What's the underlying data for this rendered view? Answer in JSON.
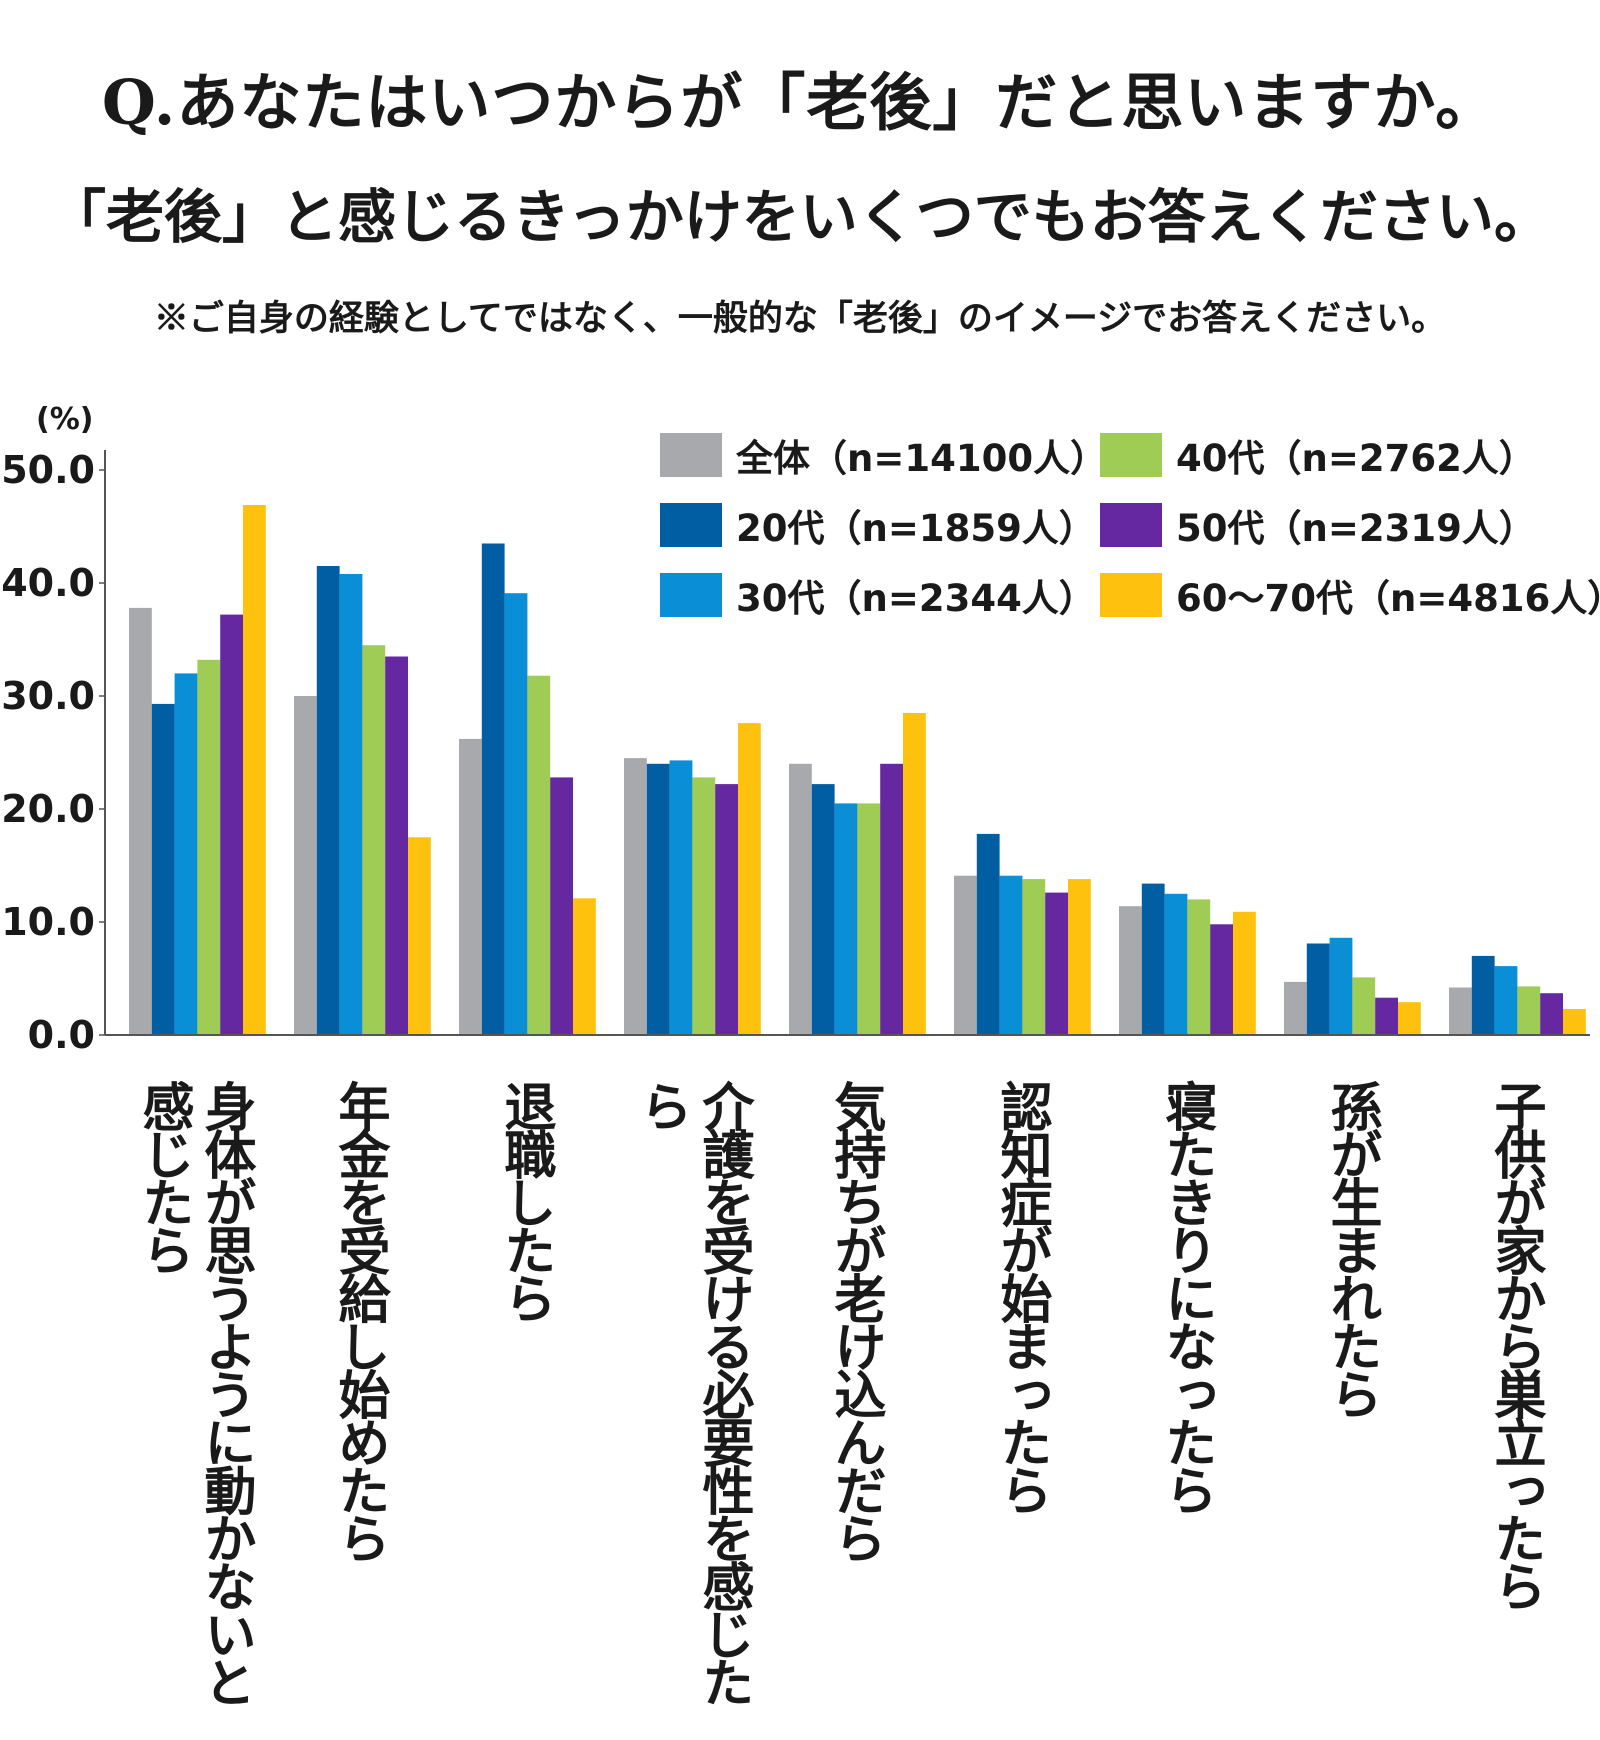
{
  "title_line1": "Q.あなたはいつからが「老後」だと思いますか。",
  "title_line2": "「老後」と感じるきっかけをいくつでもお答えください。",
  "note": "※ご自身の経験としてではなく、一般的な「老後」のイメージでお答えください。",
  "chart_data": {
    "type": "bar",
    "ylabel": "(%)",
    "ylim": [
      0,
      50
    ],
    "yticks": [
      "0.0",
      "10.0",
      "20.0",
      "30.0",
      "40.0",
      "50.0"
    ],
    "legend_position": "top-right",
    "categories": [
      "身体が思うように動かないと感じたら",
      "年金を受給し始めたら",
      "退職したら",
      "介護を受ける必要性を感じたら",
      "気持ちが老け込んだら",
      "認知症が始まったら",
      "寝たきりになったら",
      "孫が生まれたら",
      "子供が家から巣立ったら"
    ],
    "series": [
      {
        "name": "全体（n=14100人）",
        "color": "#a7a9ac",
        "values": [
          37.8,
          30.0,
          26.2,
          24.5,
          24.0,
          14.1,
          11.4,
          4.7,
          4.2
        ]
      },
      {
        "name": "20代（n=1859人）",
        "color": "#015ea3",
        "values": [
          29.3,
          41.5,
          43.5,
          24.0,
          22.2,
          17.8,
          13.4,
          8.1,
          7.0
        ]
      },
      {
        "name": "30代（n=2344人）",
        "color": "#0a8fd7",
        "values": [
          32.0,
          40.8,
          39.1,
          24.3,
          20.5,
          14.1,
          12.5,
          8.6,
          6.1
        ]
      },
      {
        "name": "40代（n=2762人）",
        "color": "#9ecc55",
        "values": [
          33.2,
          34.5,
          31.8,
          22.8,
          20.5,
          13.8,
          12.0,
          5.1,
          4.3
        ]
      },
      {
        "name": "50代（n=2319人）",
        "color": "#6528a0",
        "values": [
          37.2,
          33.5,
          22.8,
          22.2,
          24.0,
          12.6,
          9.8,
          3.3,
          3.7
        ]
      },
      {
        "name": "60～70代（n=4816人）",
        "color": "#fdc10e",
        "values": [
          46.9,
          17.5,
          12.1,
          27.6,
          28.5,
          13.8,
          10.9,
          2.9,
          2.3
        ]
      }
    ]
  }
}
